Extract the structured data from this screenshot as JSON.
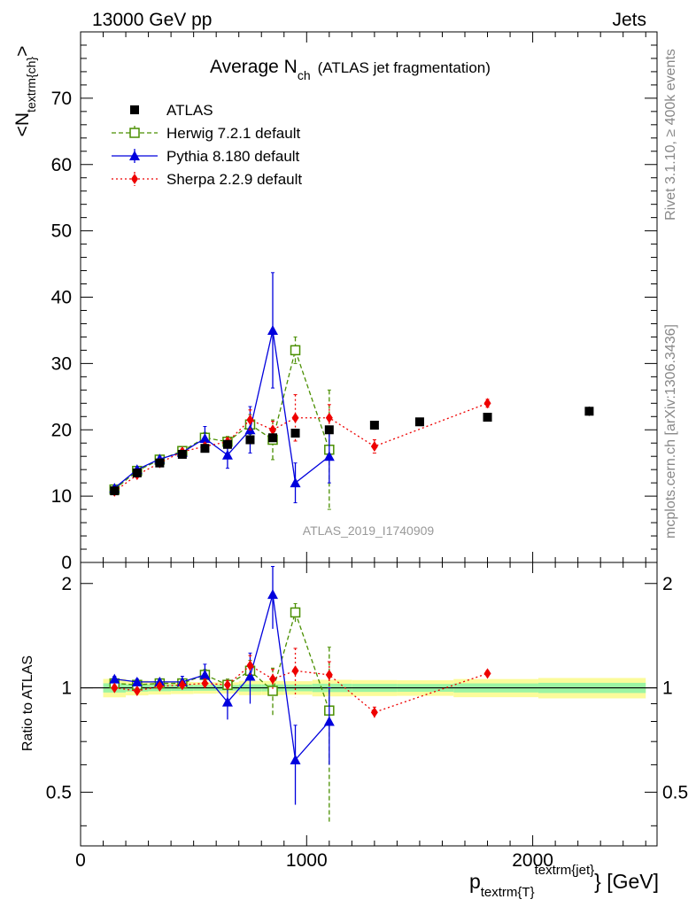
{
  "header": {
    "left": "13000 GeV pp",
    "right": "Jets"
  },
  "side": {
    "rivet": "Rivet 3.1.10, ≥ 400k events",
    "mcplots": "mcplots.cern.ch [arXiv:1306.3436]"
  },
  "chart_data": {
    "type": "scatter",
    "title_main": "Average N",
    "title_sub": "ch",
    "title_rest": "(ATLAS jet fragmentation)",
    "analysis_label": "ATLAS_2019_I1740909",
    "ylabel_main": "<N",
    "ylabel_sub": "textrm{ch}",
    "ylabel_end": ">",
    "ratio_ylabel": "Ratio to ATLAS",
    "xlabel_main": "p",
    "xlabel_sub": "textrm{T}",
    "xlabel_sup": "textrm{jet}",
    "xlabel_end": "} [GeV]",
    "xlim": [
      0,
      2550
    ],
    "ylim": [
      0,
      80
    ],
    "ratio_ylim": [
      0.35,
      2.3
    ],
    "ratio_log": true,
    "x_ticks": [
      0,
      1000,
      2000
    ],
    "x_tick_labels": [
      "0",
      "1000",
      "2000"
    ],
    "y_ticks": [
      0,
      10,
      20,
      30,
      40,
      50,
      60,
      70
    ],
    "y_tick_labels": [
      "0",
      "10",
      "20",
      "30",
      "40",
      "50",
      "60",
      "70"
    ],
    "ratio_ticks": [
      0.5,
      1,
      2
    ],
    "ratio_tick_labels": [
      "0.5",
      "1",
      "2"
    ],
    "legend": [
      "ATLAS",
      "Herwig 7.2.1 default",
      "Pythia 8.180 default",
      "Sherpa 2.2.9 default"
    ],
    "series": [
      {
        "name": "ATLAS",
        "color": "#000000",
        "marker": "square-filled",
        "x": [
          150,
          250,
          350,
          450,
          550,
          650,
          750,
          850,
          950,
          1100,
          1300,
          1500,
          1800,
          2250
        ],
        "y": [
          10.8,
          13.5,
          15.0,
          16.3,
          17.2,
          17.8,
          18.5,
          18.8,
          19.5,
          20.0,
          20.7,
          21.2,
          21.9,
          22.8
        ],
        "yerr": [
          0.3,
          0.3,
          0.3,
          0.3,
          0.3,
          0.3,
          0.4,
          0.4,
          0.4,
          0.5,
          0.5,
          0.5,
          0.6,
          0.7
        ]
      },
      {
        "name": "Herwig 7.2.1 default",
        "color": "#4a8f00",
        "marker": "square-open",
        "line": "dashed",
        "x": [
          150,
          250,
          350,
          450,
          550,
          650,
          750,
          850,
          950,
          1100
        ],
        "y": [
          11.0,
          13.8,
          15.5,
          16.8,
          18.8,
          18.2,
          20.8,
          18.5,
          32.0,
          17.0
        ],
        "yerr": [
          0.4,
          0.4,
          0.4,
          0.5,
          0.8,
          0.8,
          1.5,
          3.0,
          2.0,
          9.0
        ],
        "ratio": [
          1.03,
          1.02,
          1.03,
          1.03,
          1.09,
          1.02,
          1.12,
          0.98,
          1.65,
          0.86
        ],
        "ratio_err": [
          0.02,
          0.02,
          0.02,
          0.03,
          0.04,
          0.04,
          0.08,
          0.16,
          0.1,
          0.45
        ]
      },
      {
        "name": "Pythia 8.180 default",
        "color": "#0000dd",
        "marker": "triangle-filled",
        "line": "solid",
        "x": [
          150,
          250,
          350,
          450,
          550,
          650,
          750,
          850,
          950,
          1100
        ],
        "y": [
          11.2,
          14.0,
          15.6,
          16.6,
          18.7,
          16.2,
          20.0,
          35.0,
          12.0,
          16.0
        ],
        "yerr": [
          0.3,
          0.4,
          0.4,
          0.5,
          1.8,
          2.0,
          3.5,
          8.7,
          3.0,
          4.0
        ],
        "ratio": [
          1.06,
          1.04,
          1.04,
          1.04,
          1.09,
          0.91,
          1.08,
          1.86,
          0.62,
          0.8
        ],
        "ratio_err": [
          0.02,
          0.02,
          0.02,
          0.04,
          0.08,
          0.1,
          0.18,
          0.38,
          0.16,
          0.2
        ]
      },
      {
        "name": "Sherpa 2.2.9 default",
        "color": "#ee0000",
        "marker": "diamond-filled",
        "line": "dotted",
        "x": [
          150,
          250,
          350,
          450,
          550,
          650,
          750,
          850,
          950,
          1100,
          1300,
          1800
        ],
        "y": [
          10.7,
          13.2,
          15.0,
          16.7,
          17.5,
          18.2,
          21.5,
          20.0,
          21.8,
          21.8,
          17.5,
          24.0
        ],
        "yerr": [
          0.3,
          0.3,
          0.3,
          0.4,
          0.5,
          0.6,
          1.5,
          1.3,
          3.5,
          2.0,
          1.0,
          0.6
        ],
        "ratio": [
          1.0,
          0.98,
          1.01,
          1.02,
          1.03,
          1.02,
          1.16,
          1.06,
          1.12,
          1.09,
          0.85,
          1.1
        ],
        "ratio_err": [
          0.02,
          0.02,
          0.02,
          0.02,
          0.03,
          0.03,
          0.08,
          0.07,
          0.18,
          0.1,
          0.03,
          0.02
        ]
      }
    ]
  }
}
